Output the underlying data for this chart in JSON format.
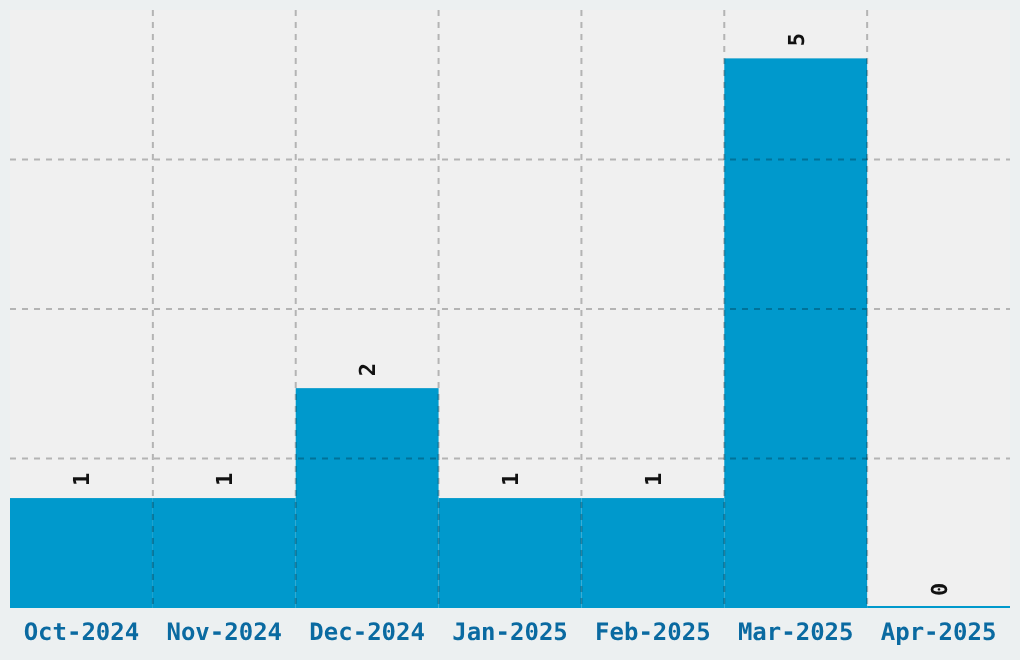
{
  "chart_data": {
    "type": "bar",
    "categories": [
      "Oct-2024",
      "Nov-2024",
      "Dec-2024",
      "Jan-2025",
      "Feb-2025",
      "Mar-2025",
      "Apr-2025"
    ],
    "values": [
      1,
      1,
      2,
      1,
      1,
      5,
      0
    ],
    "color": "#0099cc",
    "ylim": [
      0,
      5.44
    ],
    "yticks": [
      {
        "value": 1.36,
        "label": null
      },
      {
        "value": 2.72,
        "label": null
      },
      {
        "value": 4.08,
        "label": null
      }
    ],
    "tick_labels": "x",
    "grid": true,
    "data_labels": true
  }
}
